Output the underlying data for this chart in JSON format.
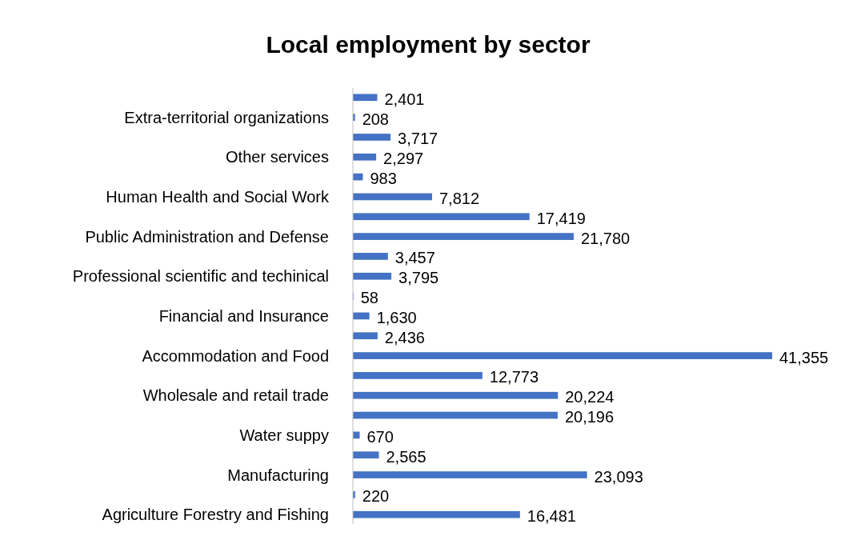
{
  "chart_data": {
    "type": "bar",
    "orientation": "horizontal",
    "title": "Local employment by sector",
    "categories": [
      null,
      "Extra-territorial organizations",
      null,
      "Other services",
      null,
      "Human Health and Social Work",
      null,
      "Public Administration and Defense",
      null,
      "Professional scientific and techinical",
      null,
      "Financial and Insurance",
      null,
      "Accommodation and Food",
      null,
      "Wholesale and retail trade",
      null,
      "Water suppy",
      null,
      "Manufacturing",
      null,
      "Agriculture Forestry and Fishing"
    ],
    "values": [
      2401,
      208,
      3717,
      2297,
      983,
      7812,
      17419,
      21780,
      3457,
      3795,
      58,
      1630,
      2436,
      41355,
      12773,
      20224,
      20196,
      670,
      2565,
      23093,
      220,
      16481
    ],
    "value_labels": [
      "2,401",
      "208",
      "3,717",
      "2,297",
      "983",
      "7,812",
      "17,419",
      "21,780",
      "3,457",
      "3,795",
      "58",
      "1,630",
      "2,436",
      "41,355",
      "12,773",
      "20,224",
      "20,196",
      "670",
      "2,565",
      "23,093",
      "220",
      "16,481"
    ],
    "color": "#4472c4"
  }
}
